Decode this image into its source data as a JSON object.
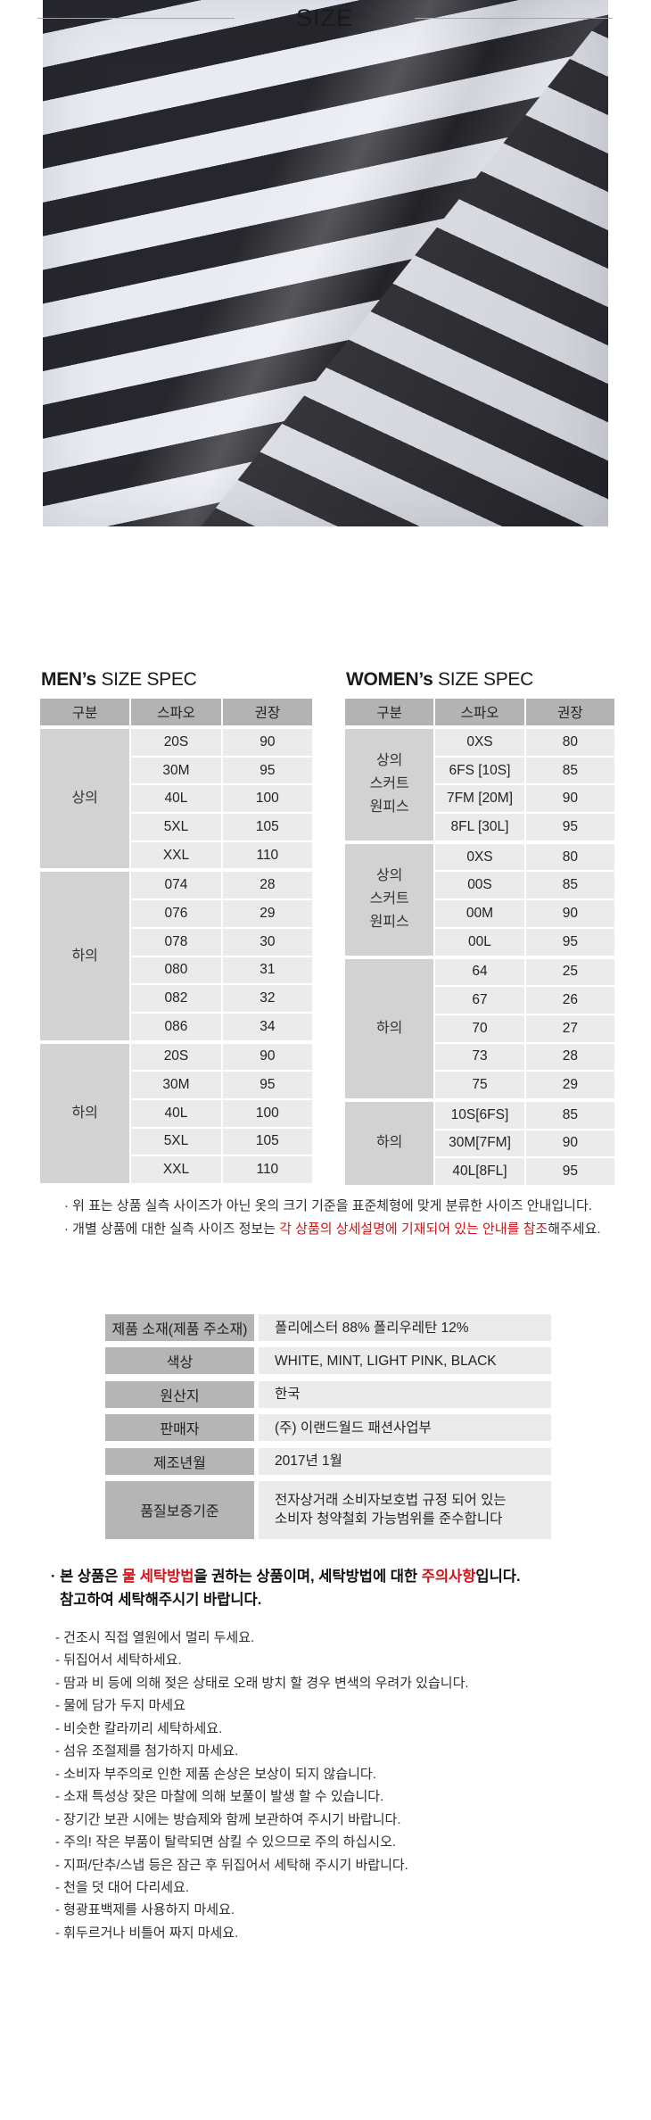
{
  "colors": {
    "accent_red": "#d21418",
    "table_header_bg": "#b3b3b3",
    "group_cell_bg": "#d2d2d2",
    "data_cell_bg": "#ebebeb",
    "info_label_bg": "#b5b5b5",
    "stripe_dark": "#26262c",
    "stripe_light": "#e9ebf3"
  },
  "size_section": {
    "title": "SIZE"
  },
  "mens_table": {
    "title_bold": "MEN’s",
    "title_rest": " SIZE SPEC",
    "headers": [
      "구분",
      "스파오",
      "권장"
    ],
    "groups": [
      {
        "label": "상의",
        "rows": [
          [
            "20S",
            "90"
          ],
          [
            "30M",
            "95"
          ],
          [
            "40L",
            "100"
          ],
          [
            "5XL",
            "105"
          ],
          [
            "XXL",
            "110"
          ]
        ]
      },
      {
        "label": "하의",
        "rows": [
          [
            "074",
            "28"
          ],
          [
            "076",
            "29"
          ],
          [
            "078",
            "30"
          ],
          [
            "080",
            "31"
          ],
          [
            "082",
            "32"
          ],
          [
            "086",
            "34"
          ]
        ]
      },
      {
        "label": "하의",
        "rows": [
          [
            "20S",
            "90"
          ],
          [
            "30M",
            "95"
          ],
          [
            "40L",
            "100"
          ],
          [
            "5XL",
            "105"
          ],
          [
            "XXL",
            "110"
          ]
        ]
      }
    ]
  },
  "womens_table": {
    "title_bold": "WOMEN’s",
    "title_rest": " SIZE SPEC",
    "headers": [
      "구분",
      "스파오",
      "권장"
    ],
    "groups": [
      {
        "label": "상의\n스커트\n원피스",
        "rows": [
          [
            "0XS",
            "80"
          ],
          [
            "6FS [10S]",
            "85"
          ],
          [
            "7FM [20M]",
            "90"
          ],
          [
            "8FL [30L]",
            "95"
          ]
        ]
      },
      {
        "label": "상의\n스커트\n원피스",
        "rows": [
          [
            "0XS",
            "80"
          ],
          [
            "00S",
            "85"
          ],
          [
            "00M",
            "90"
          ],
          [
            "00L",
            "95"
          ]
        ]
      },
      {
        "label": "하의",
        "rows": [
          [
            "64",
            "25"
          ],
          [
            "67",
            "26"
          ],
          [
            "70",
            "27"
          ],
          [
            "73",
            "28"
          ],
          [
            "75",
            "29"
          ]
        ]
      },
      {
        "label": "하의",
        "rows": [
          [
            "10S[6FS]",
            "85"
          ],
          [
            "30M[7FM]",
            "90"
          ],
          [
            "40L[8FL]",
            "95"
          ]
        ]
      }
    ]
  },
  "notes": {
    "line1": "· 위 표는 상품 실측 사이즈가 아닌 옷의 크기 기준을 표준체형에 맞게 분류한 사이즈 안내입니다.",
    "line2_prefix": "· 개별 상품에 대한 실측 사이즈 정보는 ",
    "line2_red": "각 상품의 상세설명에 기재되어 있는 안내를 참조",
    "line2_suffix": "해주세요."
  },
  "info_table": {
    "rows": [
      {
        "label": "제품 소재(제품 주소재)",
        "value": "폴리에스터 88% 폴리우레탄 12%"
      },
      {
        "label": "색상",
        "value": "WHITE, MINT, LIGHT PINK, BLACK"
      },
      {
        "label": "원산지",
        "value": "한국"
      },
      {
        "label": "판매자",
        "value": "(주) 이랜드월드 패션사업부"
      },
      {
        "label": "제조년월",
        "value": "2017년 1월"
      },
      {
        "label": "품질보증기준",
        "value": "전자상거래 소비자보호법 규정 되어 있는\n소비자 청약철회 가능범위를 준수합니다"
      }
    ]
  },
  "care": {
    "head_p1": "· 본 상품은 ",
    "head_red1": "물 세탁방법",
    "head_p2": "을 권하는 상품이며, 세탁방법에 대한 ",
    "head_red2": "주의사항",
    "head_p3": "입니다.",
    "head_line2": "참고하여 세탁해주시기 바랍니다.",
    "items": [
      "- 건조시 직접 열원에서 멀리 두세요.",
      "- 뒤집어서 세탁하세요.",
      "- 땀과 비 등에 의해 젖은 상태로 오래 방치 할 경우 변색의 우려가 있습니다.",
      "- 물에 담가 두지 마세요",
      "- 비슷한 칼라끼리 세탁하세요.",
      "- 섬유 조절제를 첨가하지 마세요.",
      "- 소비자 부주의로 인한 제품 손상은 보상이 되지 않습니다.",
      "- 소재 특성상 잦은 마찰에 의해 보풀이 발생 할 수 있습니다.",
      "- 장기간 보관 시에는 방습제와 함께 보관하여 주시기 바랍니다.",
      "- 주의! 작은 부품이 탈락되면 삼킬 수 있으므로 주의 하십시오.",
      "- 지퍼/단추/스냅 등은 잠근 후 뒤집어서 세탁해 주시기 바랍니다.",
      "- 천을 덧 대어 다리세요.",
      "- 형광표백제를 사용하지 마세요.",
      "- 휘두르거나 비틀어 짜지 마세요."
    ]
  }
}
